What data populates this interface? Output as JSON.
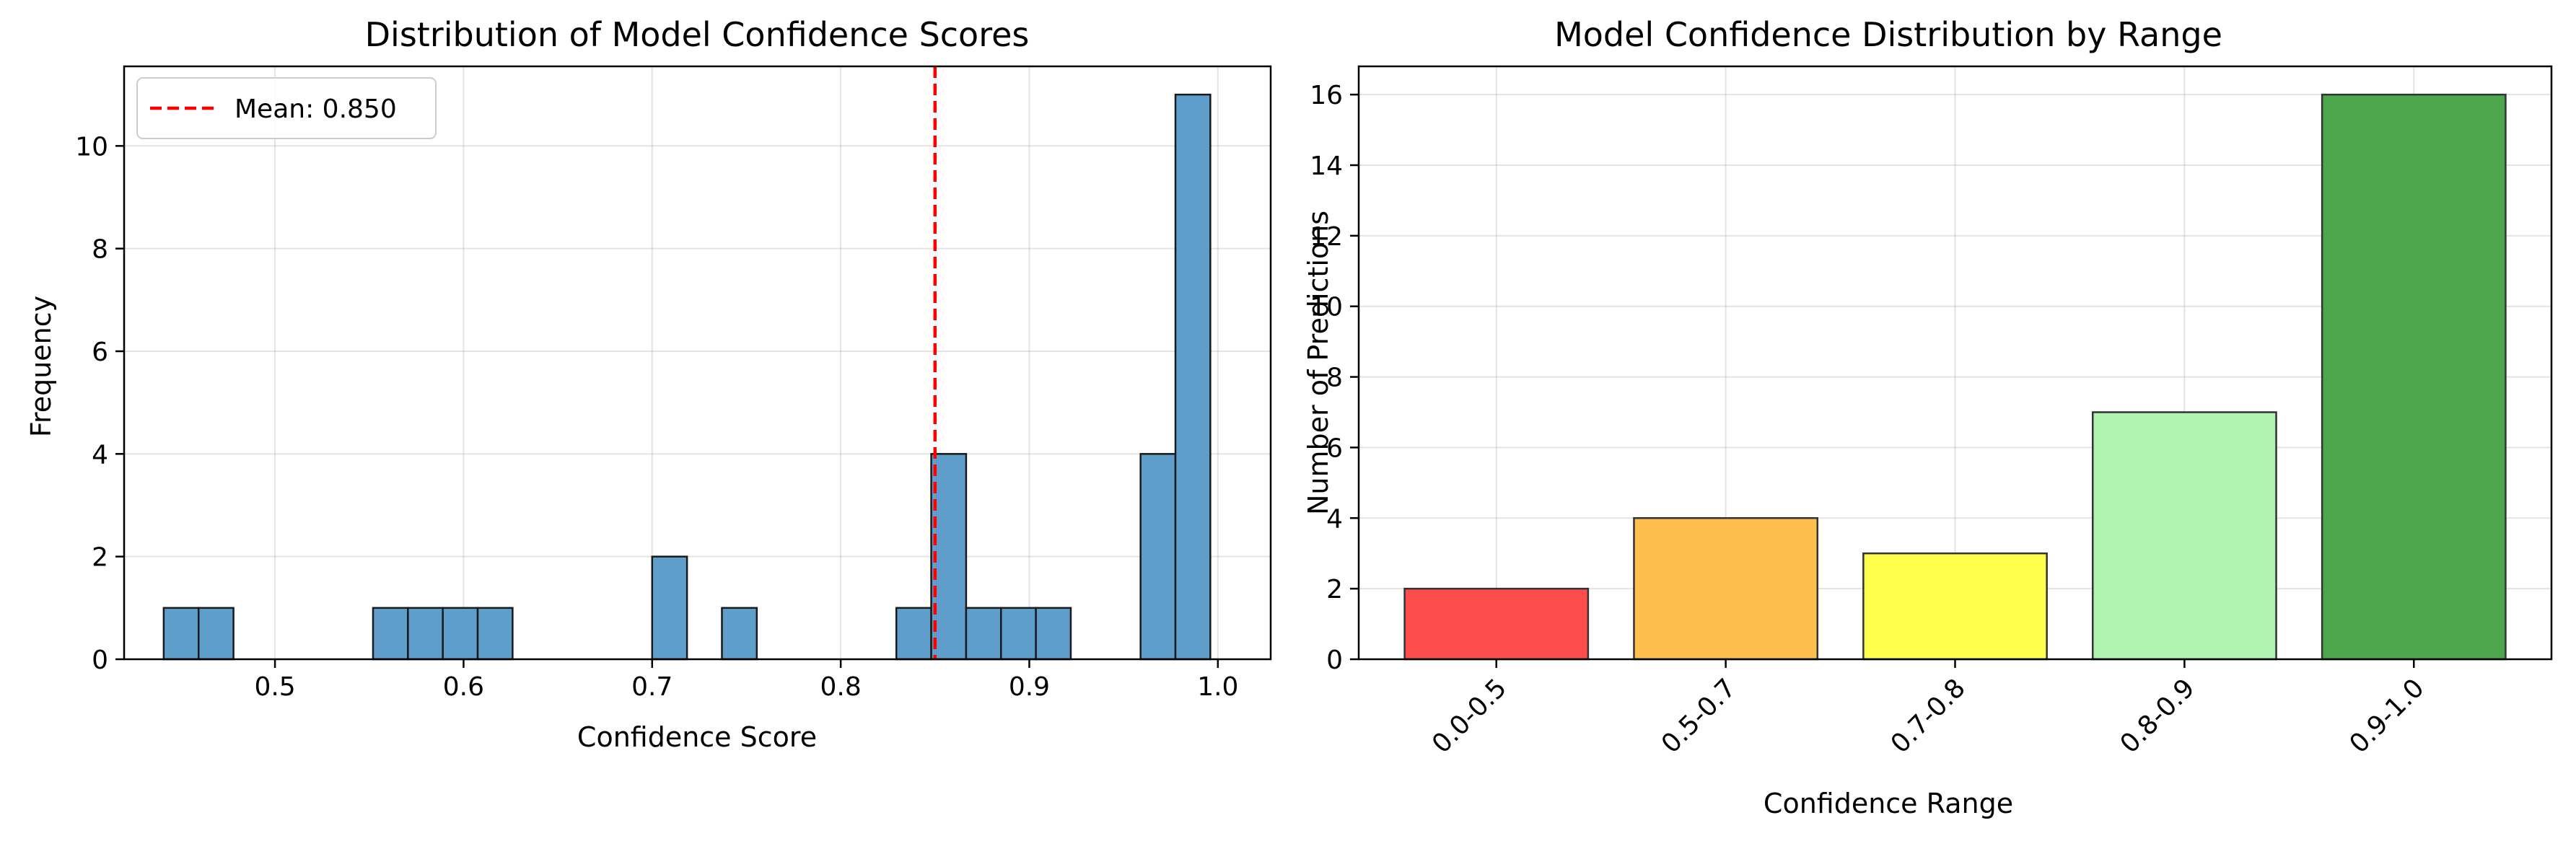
{
  "chart_data": [
    {
      "type": "bar",
      "subtype": "histogram",
      "title": "Distribution of Model Confidence Scores",
      "xlabel": "Confidence Score",
      "ylabel": "Frequency",
      "xlim": [
        0.42,
        1.028
      ],
      "ylim": [
        0,
        11.55
      ],
      "xticks": [
        0.5,
        0.6,
        0.7,
        0.8,
        0.9,
        1.0
      ],
      "xtick_labels": [
        "0.5",
        "0.6",
        "0.7",
        "0.8",
        "0.9",
        "1.0"
      ],
      "yticks": [
        0,
        2,
        4,
        6,
        8,
        10
      ],
      "bin_width": 0.0185,
      "bins": [
        {
          "x0": 0.441,
          "count": 1
        },
        {
          "x0": 0.4595,
          "count": 1
        },
        {
          "x0": 0.552,
          "count": 1
        },
        {
          "x0": 0.5705,
          "count": 1
        },
        {
          "x0": 0.589,
          "count": 1
        },
        {
          "x0": 0.6075,
          "count": 1
        },
        {
          "x0": 0.7,
          "count": 2
        },
        {
          "x0": 0.737,
          "count": 1
        },
        {
          "x0": 0.8295,
          "count": 1
        },
        {
          "x0": 0.848,
          "count": 4
        },
        {
          "x0": 0.8665,
          "count": 1
        },
        {
          "x0": 0.885,
          "count": 1
        },
        {
          "x0": 0.9035,
          "count": 1
        },
        {
          "x0": 0.959,
          "count": 4
        },
        {
          "x0": 0.9775,
          "count": 11
        }
      ],
      "mean_line": {
        "value": 0.85,
        "label": "Mean: 0.850",
        "color": "#ff0000",
        "style": "dashed"
      },
      "legend_position": "upper left",
      "bar_color": "#5f9ecb",
      "grid": true
    },
    {
      "type": "bar",
      "title": "Model Confidence Distribution by Range",
      "xlabel": "Confidence Range",
      "ylabel": "Number of Predictions",
      "categories": [
        "0.0-0.5",
        "0.5-0.7",
        "0.7-0.8",
        "0.8-0.9",
        "0.9-1.0"
      ],
      "values": [
        2,
        4,
        3,
        7,
        16
      ],
      "colors": [
        "#ff4c4c",
        "#ffbf4c",
        "#ffff4c",
        "#aef3ae",
        "#4ca64c"
      ],
      "ylim": [
        0,
        16.8
      ],
      "yticks": [
        0,
        2,
        4,
        6,
        8,
        10,
        12,
        14,
        16
      ],
      "tick_rotation": 45,
      "grid": true
    }
  ]
}
